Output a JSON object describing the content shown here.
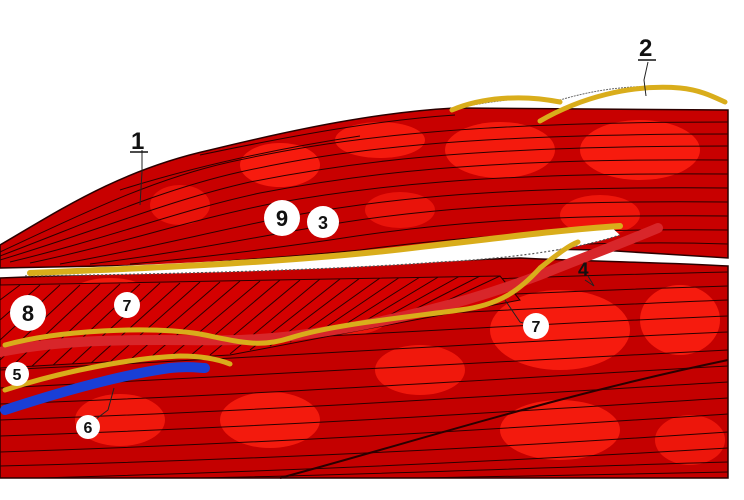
{
  "figure": {
    "labels": {
      "l1": "1",
      "l2": "2",
      "l3": "3",
      "l4": "4",
      "l5": "5",
      "l6": "6",
      "l7a": "7",
      "l7b": "7",
      "l8": "8",
      "l9": "9"
    },
    "colors": {
      "muscle_base": "#c40000",
      "muscle_mid": "#e30000",
      "muscle_light": "#ff1a0d",
      "fiber_line": "#2a0000",
      "nerve_yellow": "#d9ad1b",
      "artery_red": "#d8262a",
      "vein_blue": "#1a3fd6",
      "background": "#ffffff"
    }
  }
}
